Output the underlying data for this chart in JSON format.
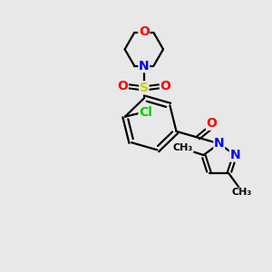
{
  "background_color": "#e8e8e8",
  "bond_color": "#000000",
  "atom_colors": {
    "O": "#ff0000",
    "N": "#0000ff",
    "S": "#cccc00",
    "Cl": "#00cc00",
    "C": "#000000"
  },
  "figsize": [
    3.0,
    3.0
  ],
  "dpi": 100
}
